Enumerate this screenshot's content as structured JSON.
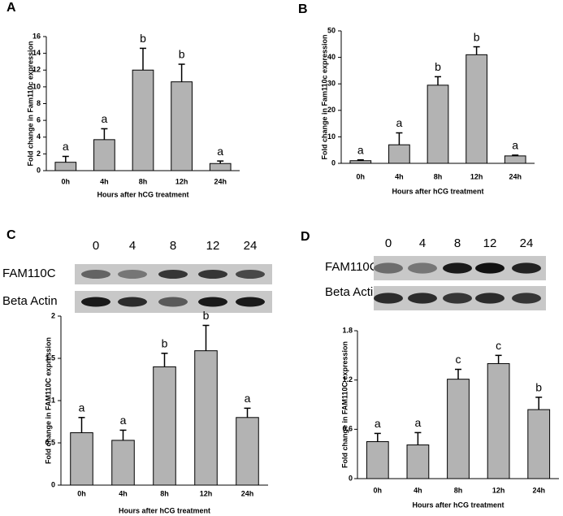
{
  "chart_data": [
    {
      "type": "bar",
      "panel": "A",
      "y_label": "Fold change in Fam110c expression",
      "x_label": "Hours after hCG treatment",
      "categories": [
        "0h",
        "4h",
        "8h",
        "12h",
        "24h"
      ],
      "values": [
        1.0,
        3.7,
        12.0,
        10.6,
        0.85
      ],
      "errors": [
        0.7,
        1.3,
        2.6,
        2.1,
        0.3
      ],
      "letters": [
        "a",
        "a",
        "b",
        "b",
        "a"
      ],
      "color": "#b3b3b3",
      "ylim": [
        0,
        16
      ],
      "yticks": [
        0,
        2,
        4,
        6,
        8,
        10,
        12,
        14,
        16
      ]
    },
    {
      "type": "bar",
      "panel": "B",
      "y_label": "Fold change in Fam110c expression",
      "x_label": "Hours after hCG treatment",
      "categories": [
        "0h",
        "4h",
        "8h",
        "12h",
        "24h"
      ],
      "values": [
        1.0,
        7.0,
        29.5,
        41.0,
        2.8
      ],
      "errors": [
        0.3,
        4.5,
        3.2,
        3.0,
        0.3
      ],
      "letters": [
        "a",
        "a",
        "b",
        "b",
        "a"
      ],
      "color": "#b3b3b3",
      "ylim": [
        0,
        50
      ],
      "yticks": [
        0,
        10,
        20,
        30,
        40,
        50
      ]
    },
    {
      "type": "bar",
      "panel": "C",
      "y_label": "Fold change in FAM110C expression",
      "x_label": "Hours after hCG treatment",
      "categories": [
        "0h",
        "4h",
        "8h",
        "12h",
        "24h"
      ],
      "values": [
        0.62,
        0.53,
        1.4,
        1.59,
        0.8
      ],
      "errors": [
        0.18,
        0.12,
        0.16,
        0.3,
        0.11
      ],
      "letters": [
        "a",
        "a",
        "b",
        "b",
        "a"
      ],
      "color": "#b3b3b3",
      "ylim": [
        0,
        2
      ],
      "yticks": [
        0,
        0.5,
        1,
        1.5,
        2
      ],
      "blot": {
        "lanes": [
          "0",
          "4",
          "8",
          "12",
          "24"
        ],
        "rows": [
          "FAM110C",
          "Beta Actin"
        ]
      }
    },
    {
      "type": "bar",
      "panel": "D",
      "y_label": "Fold change in FAM110C expression",
      "x_label": "Hours after hCG treatment",
      "categories": [
        "0h",
        "4h",
        "8h",
        "12h",
        "24h"
      ],
      "values": [
        0.45,
        0.41,
        1.21,
        1.4,
        0.84
      ],
      "errors": [
        0.1,
        0.15,
        0.12,
        0.1,
        0.15
      ],
      "letters": [
        "a",
        "a",
        "c",
        "c",
        "b"
      ],
      "color": "#b3b3b3",
      "ylim": [
        0,
        1.8
      ],
      "yticks": [
        0,
        0.6,
        1.2,
        1.8
      ],
      "blot": {
        "lanes": [
          "0",
          "4",
          "8",
          "12",
          "24"
        ],
        "rows": [
          "FAM110C",
          "Beta Actin"
        ]
      }
    }
  ]
}
